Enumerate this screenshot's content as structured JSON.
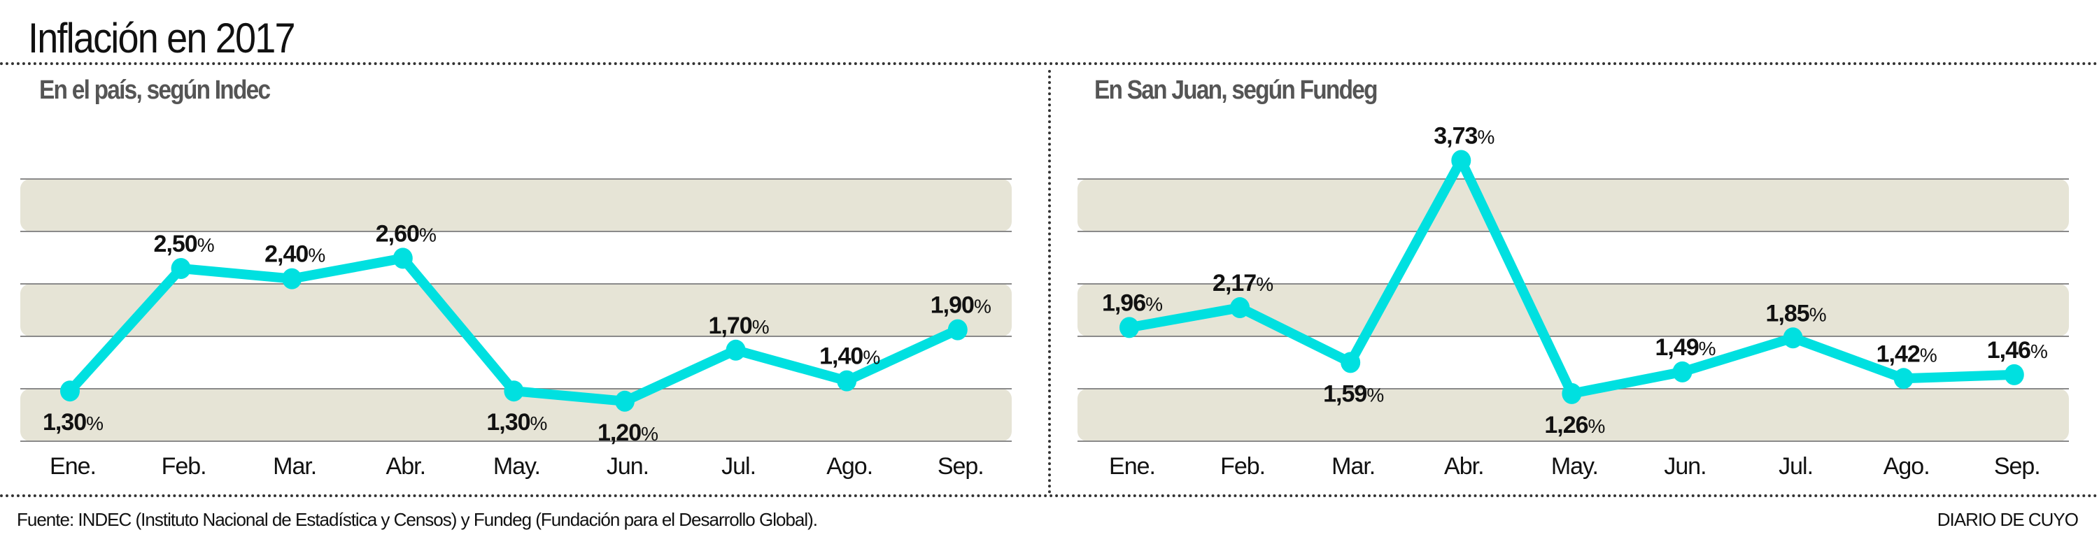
{
  "title": "Inflación en 2017",
  "footer": {
    "source": "Fuente: INDEC (Instituto Nacional de Estadística y Censos) y Fundeg (Fundación para el Desarrollo Global).",
    "brand": "DIARIO DE CUYO"
  },
  "colors": {
    "line": "#00e0e0",
    "band": "#e6e4d6",
    "band_border": "#8a8a8a",
    "subtitle": "#555555"
  },
  "chart_data": [
    {
      "type": "line",
      "title": "En el país, según Indec",
      "categories": [
        "Ene.",
        "Feb.",
        "Mar.",
        "Abr.",
        "May.",
        "Jun.",
        "Jul.",
        "Ago.",
        "Sep."
      ],
      "values": [
        1.3,
        2.5,
        2.4,
        2.6,
        1.3,
        1.2,
        1.7,
        1.4,
        1.9
      ],
      "labels": [
        "1,30",
        "2,50",
        "2,40",
        "2,60",
        "1,30",
        "1,20",
        "1,70",
        "1,40",
        "1,90"
      ],
      "label_suffix": "%",
      "label_position": [
        "below",
        "above",
        "above",
        "above",
        "below",
        "below",
        "above",
        "above",
        "above"
      ],
      "grid": "alternating horizontal bands",
      "legend": "none"
    },
    {
      "type": "line",
      "title": "En San Juan, según Fundeg",
      "categories": [
        "Ene.",
        "Feb.",
        "Mar.",
        "Abr.",
        "May.",
        "Jun.",
        "Jul.",
        "Ago.",
        "Sep."
      ],
      "values": [
        1.96,
        2.17,
        1.59,
        3.73,
        1.26,
        1.49,
        1.85,
        1.42,
        1.46
      ],
      "labels": [
        "1,96",
        "2,17",
        "1,59",
        "3,73",
        "1,26",
        "1,49",
        "1,85",
        "1,42",
        "1,46"
      ],
      "label_suffix": "%",
      "label_position": [
        "above",
        "above",
        "below",
        "above",
        "below",
        "above",
        "above",
        "above",
        "above"
      ],
      "grid": "alternating horizontal bands",
      "legend": "none"
    }
  ]
}
